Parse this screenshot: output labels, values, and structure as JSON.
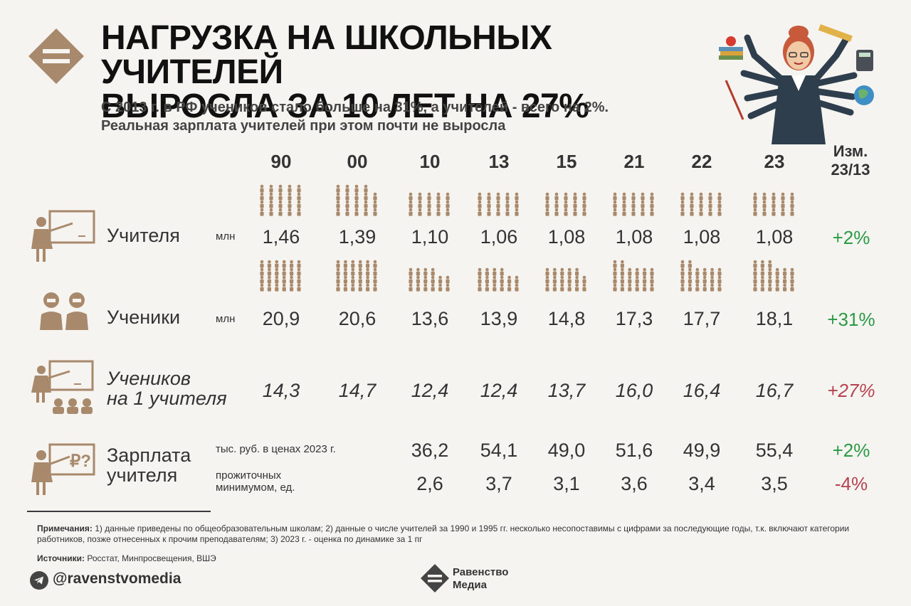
{
  "title": "НАГРУЗКА НА ШКОЛЬНЫХ УЧИТЕЛЕЙ ВЫРОСЛА ЗА 10 ЛЕТ НА 27%",
  "title_line1": "НАГРУЗКА НА ШКОЛЬНЫХ УЧИТЕЛЕЙ",
  "title_line2": "ВЫРОСЛА ЗА 10 ЛЕТ НА 27%",
  "subtitle_line1": "С 2013 г. в РФ учеников стало больше на 31%, а учителей - всего на 2%.",
  "subtitle_line2": "Реальная зарплата учителей при этом почти не выросла",
  "years": [
    "90",
    "00",
    "10",
    "13",
    "15",
    "21",
    "22",
    "23"
  ],
  "change_header_1": "Изм.",
  "change_header_2": "23/13",
  "colors": {
    "icon_brown": "#a8896b",
    "green": "#2a9a45",
    "red": "#b5424f",
    "title": "#111111"
  },
  "rows": {
    "teachers": {
      "label": "Учителя",
      "unit": "млн",
      "values": [
        "1,46",
        "1,39",
        "1,10",
        "1,06",
        "1,08",
        "1,08",
        "1,08",
        "1,08"
      ],
      "change": "+2%",
      "icon": "teacher-at-board-icon"
    },
    "students": {
      "label": "Ученики",
      "unit": "млн",
      "values": [
        "20,9",
        "20,6",
        "13,6",
        "13,9",
        "14,8",
        "17,3",
        "17,7",
        "18,1"
      ],
      "change": "+31%",
      "icon": "pupils-icon"
    },
    "ratio": {
      "label_line1": "Учеников",
      "label_line2": "на 1 учителя",
      "values": [
        "14,3",
        "14,7",
        "12,4",
        "12,4",
        "13,7",
        "16,0",
        "16,4",
        "16,7"
      ],
      "change": "+27%",
      "icon": "teacher-with-pupils-icon"
    },
    "salary": {
      "label_line1": "Зарплата",
      "label_line2": "учителя",
      "unit_rub": "тыс. руб. в ценах 2023 г.",
      "unit_min_line1": "прожиточных",
      "unit_min_line2": "минимумом, ед.",
      "values_rub": [
        "36,2",
        "54,1",
        "49,0",
        "51,6",
        "49,9",
        "55,4"
      ],
      "values_min": [
        "2,6",
        "3,7",
        "3,1",
        "3,6",
        "3,4",
        "3,5"
      ],
      "change_rub": "+2%",
      "change_min": "-4%",
      "icon": "teacher-salary-board-icon"
    }
  },
  "pictogram_density": {
    "teachers": [
      1.46,
      1.39,
      1.1,
      1.06,
      1.08,
      1.08,
      1.08,
      1.08
    ],
    "students": [
      20.9,
      20.6,
      13.6,
      13.9,
      14.8,
      17.3,
      17.7,
      18.1
    ]
  },
  "notes_label": "Примечания:",
  "notes_text": "1) данные приведены по общеобразовательным школам; 2) данные о числе учителей за 1990 и 1995 гг. несколько несопоставимы с цифрами за последующие годы, т.к. включают категории работников, позже отнесенных к прочим преподавателям; 3) 2023 г. - оценка по динамике за 1 пг",
  "sources_label": "Источники:",
  "sources_text": "Росстат, Минпросвещения, ВШЭ",
  "handle": "@ravenstvomedia",
  "brand_line1": "Равенство",
  "brand_line2": "Медиа"
}
